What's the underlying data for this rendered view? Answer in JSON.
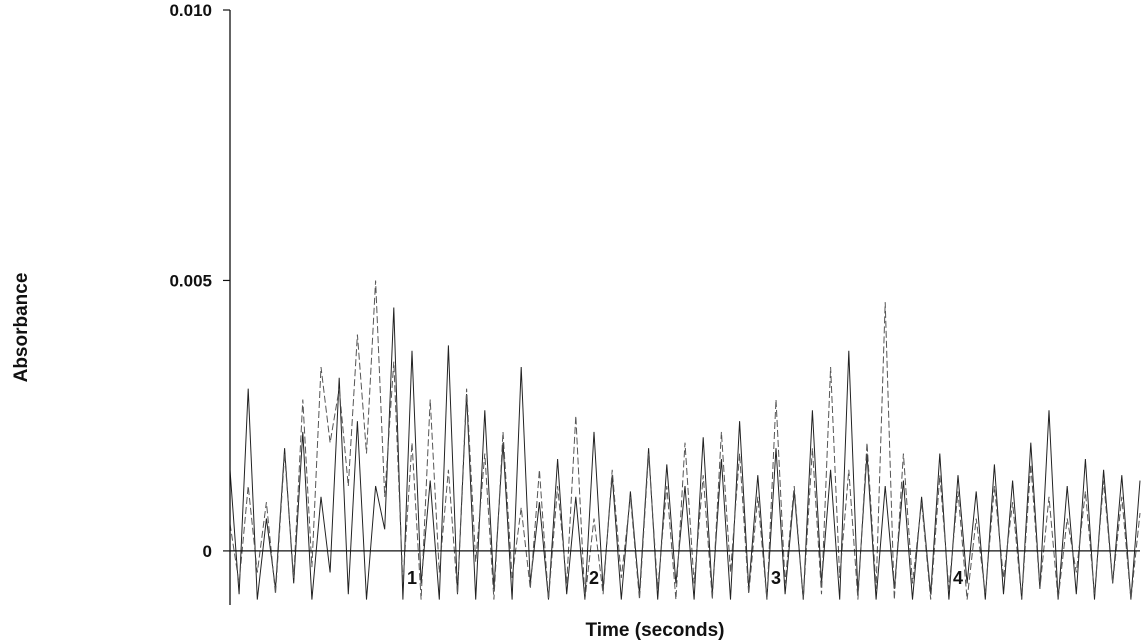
{
  "chart_data": {
    "type": "line",
    "title": "",
    "xlabel": "Time (seconds)",
    "ylabel": "Absorbance",
    "xlim": [
      0,
      5
    ],
    "ylim": [
      -0.001,
      0.01
    ],
    "x_ticks": [
      1,
      2,
      3,
      4
    ],
    "x_tick_labels": [
      "1",
      "2",
      "3",
      "4"
    ],
    "y_ticks": [
      0,
      0.005,
      0.01
    ],
    "y_tick_labels": [
      "0",
      "0.005",
      "0.010"
    ],
    "grid": false,
    "baseline": 0,
    "series": [
      {
        "style": "solid",
        "color": "#222222",
        "x": [
          0.0,
          0.05,
          0.1,
          0.15,
          0.2,
          0.25,
          0.3,
          0.35,
          0.4,
          0.45,
          0.5,
          0.55,
          0.6,
          0.65,
          0.7,
          0.75,
          0.8,
          0.85,
          0.9,
          0.95,
          1.0,
          1.05,
          1.1,
          1.15,
          1.2,
          1.25,
          1.3,
          1.35,
          1.4,
          1.45,
          1.5,
          1.55,
          1.6,
          1.65,
          1.7,
          1.75,
          1.8,
          1.85,
          1.9,
          1.95,
          2.0,
          2.05,
          2.1,
          2.15,
          2.2,
          2.25,
          2.3,
          2.35,
          2.4,
          2.45,
          2.5,
          2.55,
          2.6,
          2.65,
          2.7,
          2.75,
          2.8,
          2.85,
          2.9,
          2.95,
          3.0,
          3.05,
          3.1,
          3.15,
          3.2,
          3.25,
          3.3,
          3.35,
          3.4,
          3.45,
          3.5,
          3.55,
          3.6,
          3.65,
          3.7,
          3.75,
          3.8,
          3.85,
          3.9,
          3.95,
          4.0,
          4.05,
          4.1,
          4.15,
          4.2,
          4.25,
          4.3,
          4.35,
          4.4,
          4.45,
          4.5,
          4.55,
          4.6,
          4.65,
          4.7,
          4.75,
          4.8,
          4.85,
          4.9,
          4.95,
          5.0
        ],
        "values": [
          0.0015,
          -0.0008,
          0.003,
          -0.0009,
          0.0006,
          -0.0007,
          0.0019,
          -0.0006,
          0.0022,
          -0.0009,
          0.001,
          -0.0004,
          0.0032,
          -0.0008,
          0.0024,
          -0.0009,
          0.0012,
          0.0004,
          0.0045,
          -0.0009,
          0.0037,
          -0.0006,
          0.0013,
          -0.0009,
          0.0038,
          -0.0008,
          0.0029,
          -0.0009,
          0.0026,
          -0.0007,
          0.002,
          -0.0009,
          0.0034,
          -0.0006,
          0.0009,
          -0.0009,
          0.0017,
          -0.0008,
          0.001,
          -0.0009,
          0.0022,
          -0.0007,
          0.0014,
          -0.0009,
          0.0011,
          -0.0008,
          0.0019,
          -0.0009,
          0.0016,
          -0.0006,
          0.0012,
          -0.0009,
          0.0021,
          -0.0008,
          0.0017,
          -0.0009,
          0.0024,
          -0.0007,
          0.0014,
          -0.0009,
          0.0019,
          -0.0008,
          0.0011,
          -0.0009,
          0.0026,
          -0.0006,
          0.0015,
          -0.0009,
          0.0037,
          -0.0008,
          0.0018,
          -0.0009,
          0.0012,
          -0.0007,
          0.0013,
          -0.0009,
          0.001,
          -0.0008,
          0.0018,
          -0.0009,
          0.0014,
          -0.0006,
          0.0011,
          -0.0009,
          0.0016,
          -0.0008,
          0.0013,
          -0.0009,
          0.002,
          -0.0007,
          0.0026,
          -0.0009,
          0.0012,
          -0.0008,
          0.0017,
          -0.0009,
          0.0015,
          -0.0006,
          0.0014,
          -0.0009,
          0.0013
        ]
      },
      {
        "style": "dashed",
        "color": "#555555",
        "x": [
          0.0,
          0.05,
          0.1,
          0.15,
          0.2,
          0.25,
          0.3,
          0.35,
          0.4,
          0.45,
          0.5,
          0.55,
          0.6,
          0.65,
          0.7,
          0.75,
          0.8,
          0.85,
          0.9,
          0.95,
          1.0,
          1.05,
          1.1,
          1.15,
          1.2,
          1.25,
          1.3,
          1.35,
          1.4,
          1.45,
          1.5,
          1.55,
          1.6,
          1.65,
          1.7,
          1.75,
          1.8,
          1.85,
          1.9,
          1.95,
          2.0,
          2.05,
          2.1,
          2.15,
          2.2,
          2.25,
          2.3,
          2.35,
          2.4,
          2.45,
          2.5,
          2.55,
          2.6,
          2.65,
          2.7,
          2.75,
          2.8,
          2.85,
          2.9,
          2.95,
          3.0,
          3.05,
          3.1,
          3.15,
          3.2,
          3.25,
          3.3,
          3.35,
          3.4,
          3.45,
          3.5,
          3.55,
          3.6,
          3.65,
          3.7,
          3.75,
          3.8,
          3.85,
          3.9,
          3.95,
          4.0,
          4.05,
          4.1,
          4.15,
          4.2,
          4.25,
          4.3,
          4.35,
          4.4,
          4.45,
          4.5,
          4.55,
          4.6,
          4.65,
          4.7,
          4.75,
          4.8,
          4.85,
          4.9,
          4.95,
          5.0
        ],
        "values": [
          0.0005,
          -0.0006,
          0.0012,
          -0.0004,
          0.0009,
          -0.0008,
          0.0018,
          -0.0005,
          0.0028,
          -0.0003,
          0.0034,
          0.002,
          0.003,
          0.0012,
          0.004,
          0.0018,
          0.005,
          0.001,
          0.0035,
          -0.0006,
          0.002,
          -0.0009,
          0.0028,
          -0.0004,
          0.0015,
          -0.0008,
          0.003,
          -0.0002,
          0.0018,
          -0.0009,
          0.0022,
          -0.0005,
          0.0008,
          -0.0007,
          0.0015,
          -0.0009,
          0.0012,
          -0.0006,
          0.0025,
          -0.0009,
          0.0006,
          -0.0008,
          0.0015,
          -0.0005,
          0.001,
          -0.0009,
          0.0018,
          -0.0007,
          0.0012,
          -0.0009,
          0.002,
          -0.0006,
          0.0014,
          -0.0009,
          0.0022,
          -0.0004,
          0.0018,
          -0.0008,
          0.001,
          -0.0009,
          0.0028,
          -0.0006,
          0.0012,
          -0.0009,
          0.0019,
          -0.0008,
          0.0034,
          -0.0005,
          0.0015,
          -0.0009,
          0.002,
          -0.0007,
          0.0046,
          -0.0009,
          0.0018,
          -0.0006,
          0.0009,
          -0.0009,
          0.0014,
          -0.0007,
          0.0011,
          -0.0009,
          0.0006,
          -0.0008,
          0.0012,
          -0.0005,
          0.0009,
          -0.0009,
          0.0016,
          -0.0007,
          0.001,
          -0.0009,
          0.0006,
          -0.0004,
          0.0011,
          -0.0008,
          0.0013,
          -0.0006,
          0.001,
          -0.0009,
          0.0007
        ]
      }
    ]
  }
}
